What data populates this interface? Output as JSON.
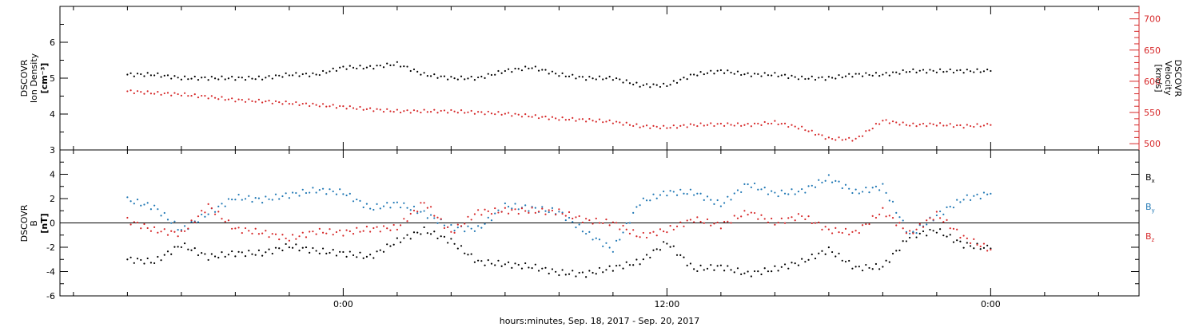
{
  "chart_data": [
    {
      "type": "scatter",
      "panel": "top",
      "ylabel_left": [
        "DSCOVR",
        "Ion Density",
        "[cm⁻³]"
      ],
      "ylabel_right": [
        "DSCOVR",
        "Velocity",
        "[km/s]"
      ],
      "ylim_left": [
        3,
        7
      ],
      "yticks_left": [
        3,
        4,
        5,
        6
      ],
      "ytick_labels_left": [
        "3",
        "4",
        "5",
        "6"
      ],
      "ylim_right": [
        490,
        720
      ],
      "yticks_right": [
        500,
        550,
        600,
        650,
        700
      ],
      "ytick_labels_right": [
        "500",
        "550",
        "600",
        "650",
        "700"
      ],
      "right_axis_color": "#d62728",
      "series": [
        {
          "axis": "left",
          "color": "#000000",
          "x": [
            -8,
            -7,
            -6,
            -5,
            -4,
            -3,
            -2,
            -1,
            0,
            1,
            2,
            3,
            4,
            5,
            6,
            7,
            8,
            9,
            10,
            11,
            12,
            13,
            14,
            15,
            16,
            17,
            18,
            19,
            20,
            21,
            22,
            23,
            24
          ],
          "values": [
            5.1,
            5.1,
            5.0,
            5.0,
            5.0,
            5.0,
            5.1,
            5.1,
            5.3,
            5.3,
            5.4,
            5.1,
            5.0,
            5.0,
            5.2,
            5.3,
            5.1,
            5.0,
            5.0,
            4.8,
            4.8,
            5.1,
            5.2,
            5.1,
            5.1,
            5.0,
            5.0,
            5.1,
            5.1,
            5.2,
            5.2,
            5.2,
            5.2
          ]
        },
        {
          "axis": "right",
          "color": "#d62728",
          "x": [
            -8,
            -7,
            -6,
            -5,
            -4,
            -3,
            -2,
            -1,
            0,
            1,
            2,
            3,
            4,
            5,
            6,
            7,
            8,
            9,
            10,
            11,
            12,
            13,
            14,
            15,
            16,
            17,
            18,
            19,
            20,
            21,
            22,
            23,
            24
          ],
          "values": [
            584,
            581,
            579,
            575,
            570,
            568,
            565,
            562,
            559,
            555,
            552,
            552,
            552,
            550,
            548,
            544,
            540,
            538,
            535,
            528,
            526,
            530,
            531,
            530,
            534,
            525,
            508,
            507,
            537,
            530,
            531,
            528,
            530
          ]
        }
      ]
    },
    {
      "type": "scatter",
      "panel": "bottom",
      "ylabel_left": [
        "DSCOVR",
        "B",
        "[nT]"
      ],
      "ylim": [
        -6,
        6
      ],
      "yticks": [
        -6,
        -4,
        -2,
        0,
        2,
        4
      ],
      "ytick_labels": [
        "-6",
        "-4",
        "-2",
        "0",
        "2",
        "4"
      ],
      "zero_line": true,
      "series": [
        {
          "name": "B",
          "sub": "x",
          "color": "#000000",
          "x": [
            -8,
            -7,
            -6,
            -5,
            -4,
            -3,
            -2,
            -1,
            0,
            1,
            2,
            3,
            4,
            5,
            6,
            7,
            8,
            9,
            10,
            11,
            12,
            13,
            14,
            15,
            16,
            17,
            18,
            19,
            20,
            21,
            22,
            23,
            24
          ],
          "values": [
            -3.0,
            -3.2,
            -1.8,
            -2.8,
            -2.5,
            -2.5,
            -1.9,
            -2.3,
            -2.5,
            -2.8,
            -1.5,
            -0.6,
            -1.5,
            -3.2,
            -3.4,
            -3.6,
            -4.1,
            -4.2,
            -3.7,
            -3.2,
            -1.6,
            -3.8,
            -3.6,
            -4.2,
            -3.8,
            -3.2,
            -2.2,
            -3.7,
            -3.6,
            -1.1,
            -0.6,
            -1.8,
            -2.1
          ]
        },
        {
          "name": "B",
          "sub": "y",
          "color": "#1f77b4",
          "x": [
            -8,
            -7,
            -6,
            -5,
            -4,
            -3,
            -2,
            -1,
            0,
            1,
            2,
            3,
            4,
            5,
            6,
            7,
            8,
            9,
            10,
            11,
            12,
            13,
            14,
            15,
            16,
            17,
            18,
            19,
            20,
            21,
            22,
            23,
            24
          ],
          "values": [
            1.9,
            1.3,
            -0.6,
            0.8,
            2.1,
            1.9,
            2.3,
            2.7,
            2.5,
            1.2,
            1.6,
            0.8,
            -0.4,
            -0.5,
            1.4,
            1.2,
            0.9,
            -0.8,
            -2.2,
            1.7,
            2.5,
            2.5,
            1.5,
            3.2,
            2.4,
            2.6,
            3.7,
            2.5,
            3.0,
            -1.0,
            0.6,
            2.0,
            2.4
          ]
        },
        {
          "name": "B",
          "sub": "z",
          "color": "#d62728",
          "x": [
            -8,
            -7,
            -6,
            -5,
            -4,
            -3,
            -2,
            -1,
            0,
            1,
            2,
            3,
            4,
            5,
            6,
            7,
            8,
            9,
            10,
            11,
            12,
            13,
            14,
            15,
            16,
            17,
            18,
            19,
            20,
            21,
            22,
            23,
            24
          ],
          "values": [
            0.2,
            -0.6,
            -0.9,
            1.4,
            -0.5,
            -0.8,
            -1.3,
            -0.7,
            -0.8,
            -0.5,
            -0.4,
            1.7,
            -0.8,
            0.9,
            1.0,
            1.0,
            0.9,
            0.2,
            0.0,
            -1.1,
            -0.6,
            0.3,
            -0.2,
            0.9,
            0.0,
            0.6,
            -0.6,
            -0.8,
            1.0,
            -0.9,
            0.7,
            -1.2,
            -2.2
          ]
        }
      ]
    }
  ],
  "xaxis": {
    "label": "hours:minutes, Sep. 18, 2017 - Sep. 20, 2017",
    "xlim_hours": [
      -10.5,
      29.5
    ],
    "major_ticks_hours": [
      0,
      12,
      24
    ],
    "major_tick_labels": [
      "0:00",
      "12:00",
      "0:00"
    ],
    "minor_tick_step_hours": 2
  },
  "legend": {
    "placement": "right",
    "items": [
      {
        "main": "B",
        "sub": "x",
        "color": "#000000"
      },
      {
        "main": "B",
        "sub": "y",
        "color": "#1f77b4"
      },
      {
        "main": "B",
        "sub": "z",
        "color": "#d62728"
      }
    ]
  },
  "meta": {
    "title": ""
  }
}
